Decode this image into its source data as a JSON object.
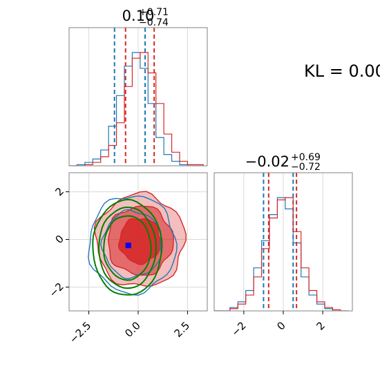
{
  "chart_data": [
    {
      "type": "histogram",
      "panel": "top-left",
      "title": {
        "main": "0.10",
        "sup": "+0.71",
        "sub": "−0.74"
      },
      "xlim": [
        -3.5,
        3.5
      ],
      "grid": true,
      "series": [
        {
          "name": "",
          "color": "#1f77b4",
          "quantiles": [
            -1.2,
            0.35
          ],
          "bins": [
            -3.5,
            -3.1,
            -2.7,
            -2.3,
            -1.9,
            -1.5,
            -1.1,
            -0.7,
            -0.3,
            0.1,
            0.5,
            0.9,
            1.3,
            1.7,
            2.1,
            2.5,
            2.9,
            3.3
          ],
          "values": [
            0,
            1,
            3,
            6,
            14,
            35,
            62,
            88,
            100,
            86,
            55,
            25,
            10,
            4,
            1,
            0,
            0
          ]
        },
        {
          "name": "",
          "color": "#d62728",
          "quantiles": [
            -0.64,
            0.81
          ],
          "bins": [
            -3.5,
            -3.1,
            -2.7,
            -2.3,
            -1.9,
            -1.5,
            -1.1,
            -0.7,
            -0.3,
            0.1,
            0.5,
            0.9,
            1.3,
            1.7,
            2.1,
            2.5,
            2.9,
            3.3
          ],
          "values": [
            0,
            0,
            1,
            3,
            8,
            18,
            38,
            70,
            95,
            100,
            82,
            55,
            28,
            12,
            4,
            1,
            1
          ]
        }
      ]
    },
    {
      "type": "histogram",
      "panel": "bottom-right",
      "title": {
        "main": "−0.02",
        "sup": "+0.69",
        "sub": "−0.72"
      },
      "xlim": [
        -3.5,
        3.5
      ],
      "x_ticks": [
        "−2",
        "0",
        "2"
      ],
      "x_tick_values": [
        -2,
        0,
        2
      ],
      "grid": true,
      "series": [
        {
          "name": "",
          "color": "#1f77b4",
          "quantiles": [
            -1.0,
            0.5
          ],
          "bins": [
            -3.5,
            -3.1,
            -2.7,
            -2.3,
            -1.9,
            -1.5,
            -1.1,
            -0.7,
            -0.3,
            0.1,
            0.5,
            0.9,
            1.3,
            1.7,
            2.1,
            2.5,
            2.9,
            3.3
          ],
          "values": [
            0,
            0,
            3,
            8,
            18,
            38,
            62,
            85,
            100,
            90,
            60,
            30,
            14,
            6,
            2,
            0,
            0
          ]
        },
        {
          "name": "",
          "color": "#d62728",
          "quantiles": [
            -0.74,
            0.67
          ],
          "bins": [
            -3.5,
            -3.1,
            -2.7,
            -2.3,
            -1.9,
            -1.5,
            -1.1,
            -0.7,
            -0.3,
            0.1,
            0.5,
            0.9,
            1.3,
            1.7,
            2.1,
            2.5,
            2.9,
            3.3
          ],
          "values": [
            0,
            0,
            2,
            6,
            14,
            30,
            55,
            82,
            98,
            100,
            70,
            38,
            18,
            8,
            3,
            1,
            0
          ]
        }
      ]
    },
    {
      "type": "contour",
      "panel": "bottom-left",
      "xlim": [
        -3.5,
        3.5
      ],
      "ylim": [
        -3.0,
        2.8
      ],
      "x_ticks": [
        "−2.5",
        "0.0",
        "2.5"
      ],
      "x_tick_values": [
        -2.5,
        0,
        2.5
      ],
      "y_ticks": [
        "−2",
        "0",
        "2"
      ],
      "y_tick_values": [
        -2,
        0,
        2
      ],
      "grid": true,
      "point_estimate": {
        "x": -0.5,
        "y": -0.25,
        "color": "#0000ff"
      },
      "contour_sets": [
        {
          "name": "",
          "color": "#d62728",
          "filled": true,
          "center": [
            0.1,
            -0.05
          ],
          "levels": [
            {
              "rx": 2.25,
              "ry": 1.95
            },
            {
              "rx": 1.65,
              "ry": 1.45
            },
            {
              "rx": 1.05,
              "ry": 0.95
            }
          ]
        },
        {
          "name": "",
          "color": "#1f77b4",
          "filled": false,
          "center": [
            -0.3,
            -0.2
          ],
          "levels": [
            {
              "rx": 2.2,
              "ry": 2.05
            },
            {
              "rx": 1.5,
              "ry": 1.4
            }
          ]
        },
        {
          "name": "",
          "color": "#008000",
          "filled": false,
          "center": [
            -0.55,
            -0.35
          ],
          "levels": [
            {
              "rx": 1.75,
              "ry": 2.0
            },
            {
              "rx": 1.45,
              "ry": 1.7
            },
            {
              "rx": 1.2,
              "ry": 1.35
            }
          ]
        }
      ]
    }
  ],
  "annotation": {
    "kl_text": "KL = 0.00"
  }
}
